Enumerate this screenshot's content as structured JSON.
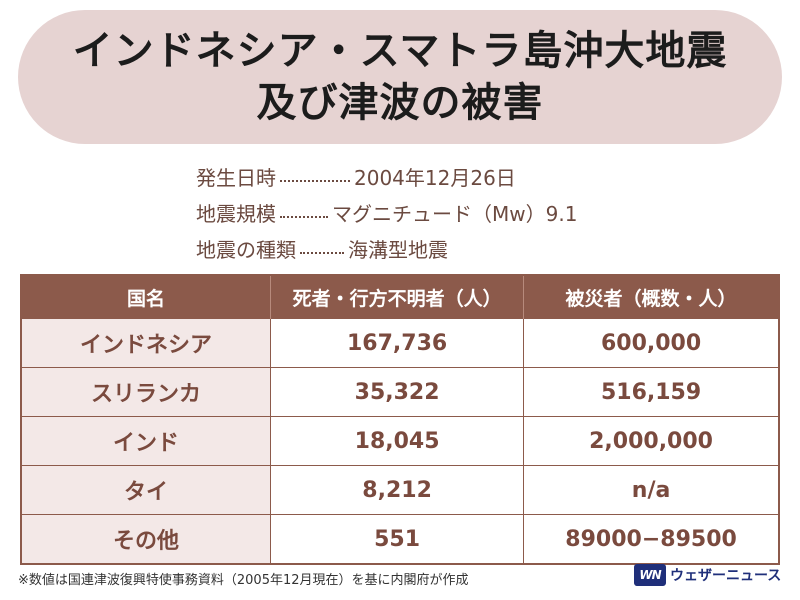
{
  "title": {
    "line1": "インドネシア・スマトラ島沖大地震",
    "line2": "及び津波の被害"
  },
  "info": [
    {
      "label": "発生日時",
      "value": "2004年12月26日"
    },
    {
      "label": "地震規模",
      "value": "マグニチュード（Mw）9.1"
    },
    {
      "label": "地震の種類",
      "value": "海溝型地震"
    }
  ],
  "table": {
    "headers": [
      "国名",
      "死者・行方不明者（人）",
      "被災者（概数・人）"
    ],
    "rows": [
      [
        "インドネシア",
        "167,736",
        "600,000"
      ],
      [
        "スリランカ",
        "35,322",
        "516,159"
      ],
      [
        "インド",
        "18,045",
        "2,000,000"
      ],
      [
        "タイ",
        "8,212",
        "n/a"
      ],
      [
        "その他",
        "551",
        "89000−89500"
      ]
    ]
  },
  "footnote": "※数値は国連津波復興特使事務資料（2005年12月現在）を基に内閣府が作成",
  "logo": {
    "mark": "WN",
    "text": "ウェザーニュース"
  }
}
